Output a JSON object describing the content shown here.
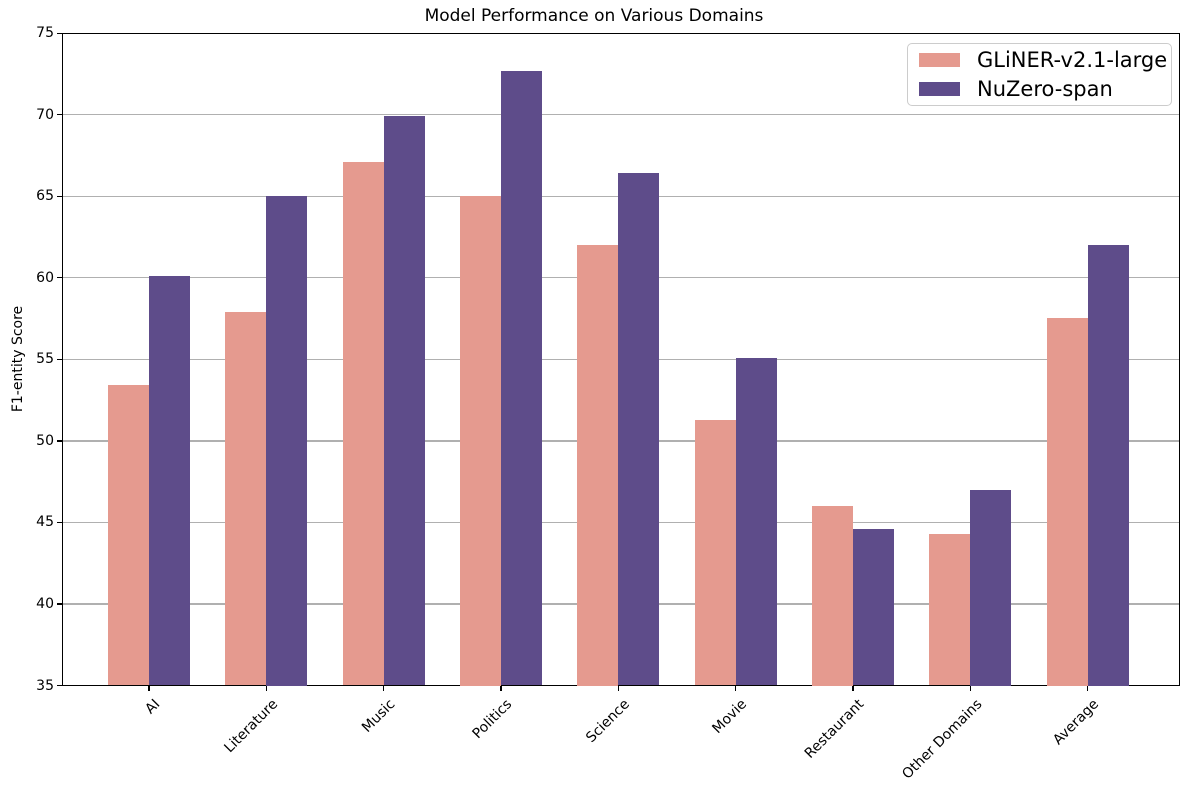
{
  "figure": {
    "title": "Model Performance on Various Domains",
    "ylabel": "F1-entity Score"
  },
  "chart_data": {
    "type": "bar",
    "title": "Model Performance on Various Domains",
    "xlabel": "",
    "ylabel": "F1-entity Score",
    "categories": [
      "AI",
      "Literature",
      "Music",
      "Politics",
      "Science",
      "Movie",
      "Restaurant",
      "Other Domains",
      "Average"
    ],
    "series": [
      {
        "name": "GLiNER-v2.1-large",
        "color": "#e59a8f",
        "values": [
          53.4,
          57.9,
          67.1,
          65.0,
          62.0,
          51.3,
          46.0,
          44.3,
          57.5
        ]
      },
      {
        "name": "NuZero-span",
        "color": "#5e4c8a",
        "values": [
          60.1,
          65.0,
          69.9,
          72.7,
          66.4,
          55.1,
          44.6,
          47.0,
          62.0
        ]
      }
    ],
    "ylim": [
      35,
      75
    ],
    "yticks": [
      35,
      40,
      45,
      50,
      55,
      60,
      65,
      70,
      75
    ],
    "grid": "horizontal",
    "grid_color": "#b0b0b0",
    "legend_position": "upper right",
    "x_tick_rotation_deg": 45,
    "background_color": "#ffffff",
    "spine_color": "#000000"
  }
}
